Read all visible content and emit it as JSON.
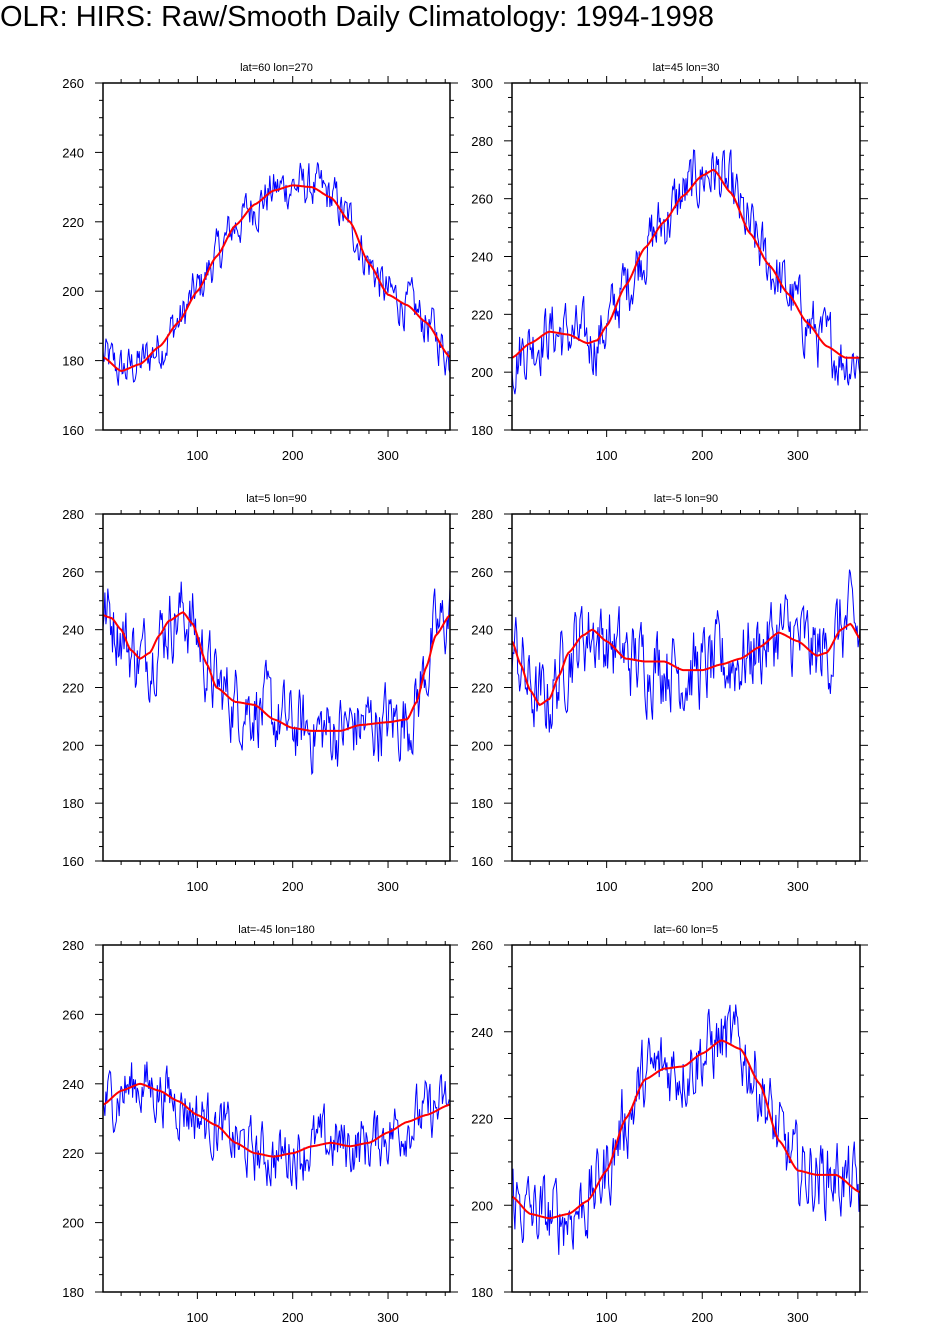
{
  "title": "OLR: HIRS: Raw/Smooth Daily Climatology: 1994-1998",
  "colors": {
    "raw": "#0000ff",
    "smooth": "#ff0000",
    "axes": "#000000"
  },
  "chart_data": [
    {
      "type": "line",
      "title": "lat=60  lon=270",
      "xlim": [
        1,
        365
      ],
      "ylim": [
        160,
        260
      ],
      "xticks": [
        100,
        200,
        300
      ],
      "yticks": [
        160,
        180,
        200,
        220,
        240,
        260
      ],
      "raw_noise_amplitude": 6,
      "series": [
        {
          "name": "smooth",
          "x": [
            1,
            20,
            40,
            60,
            80,
            100,
            120,
            140,
            160,
            180,
            200,
            220,
            240,
            260,
            280,
            300,
            320,
            340,
            365
          ],
          "values": [
            181,
            177,
            179,
            184,
            191,
            200,
            210,
            219,
            225,
            229,
            230.5,
            230,
            227,
            220,
            208,
            199,
            196,
            191,
            181
          ]
        }
      ]
    },
    {
      "type": "line",
      "title": "lat=45  lon=30",
      "xlim": [
        1,
        365
      ],
      "ylim": [
        180,
        300
      ],
      "xticks": [
        100,
        200,
        300
      ],
      "yticks": [
        180,
        200,
        220,
        240,
        260,
        280,
        300
      ],
      "raw_noise_amplitude": 10,
      "series": [
        {
          "name": "smooth",
          "x": [
            1,
            20,
            40,
            60,
            80,
            90,
            100,
            120,
            140,
            160,
            180,
            200,
            212,
            230,
            250,
            270,
            290,
            310,
            330,
            350,
            365
          ],
          "values": [
            205,
            210,
            214,
            213,
            210,
            211,
            216,
            230,
            243,
            252,
            261,
            268,
            270,
            262,
            248,
            237,
            227,
            217,
            209,
            205,
            205
          ]
        }
      ]
    },
    {
      "type": "line",
      "title": "lat=5  lon=90",
      "xlim": [
        1,
        365
      ],
      "ylim": [
        160,
        280
      ],
      "xticks": [
        100,
        200,
        300
      ],
      "yticks": [
        160,
        180,
        200,
        220,
        240,
        260,
        280
      ],
      "raw_noise_amplitude": 12,
      "series": [
        {
          "name": "smooth",
          "x": [
            1,
            10,
            20,
            30,
            40,
            50,
            60,
            70,
            85,
            95,
            110,
            120,
            140,
            160,
            180,
            200,
            220,
            250,
            270,
            300,
            320,
            330,
            340,
            350,
            365
          ],
          "values": [
            245,
            244,
            240,
            233,
            230,
            232,
            238,
            243,
            246,
            242,
            228,
            220,
            215,
            214,
            209,
            206,
            205,
            205,
            207,
            208,
            209,
            215,
            227,
            238,
            245
          ]
        }
      ]
    },
    {
      "type": "line",
      "title": "lat=-5  lon=90",
      "xlim": [
        1,
        365
      ],
      "ylim": [
        160,
        280
      ],
      "xticks": [
        100,
        200,
        300
      ],
      "yticks": [
        160,
        180,
        200,
        220,
        240,
        260,
        280
      ],
      "raw_noise_amplitude": 13,
      "series": [
        {
          "name": "smooth",
          "x": [
            1,
            10,
            20,
            30,
            40,
            50,
            60,
            75,
            85,
            100,
            120,
            140,
            160,
            180,
            200,
            220,
            240,
            260,
            280,
            300,
            320,
            330,
            345,
            355,
            365
          ],
          "values": [
            236,
            228,
            219,
            214,
            216,
            224,
            232,
            238,
            240,
            236,
            230,
            229,
            229,
            226,
            226,
            228,
            230,
            234,
            239,
            236,
            231,
            232,
            240,
            242,
            237
          ]
        }
      ]
    },
    {
      "type": "line",
      "title": "lat=-45  lon=180",
      "xlim": [
        1,
        365
      ],
      "ylim": [
        180,
        280
      ],
      "xticks": [
        100,
        200,
        300
      ],
      "yticks": [
        180,
        200,
        220,
        240,
        260,
        280
      ],
      "raw_noise_amplitude": 8,
      "series": [
        {
          "name": "smooth",
          "x": [
            1,
            20,
            40,
            60,
            80,
            100,
            120,
            140,
            160,
            180,
            200,
            220,
            240,
            260,
            280,
            300,
            320,
            340,
            365
          ],
          "values": [
            234,
            238,
            240,
            238,
            235,
            231,
            228,
            223,
            220,
            219,
            220,
            222,
            223,
            222,
            223,
            226,
            229,
            231,
            234
          ]
        }
      ]
    },
    {
      "type": "line",
      "title": "lat=-60  lon=5",
      "xlim": [
        1,
        365
      ],
      "ylim": [
        180,
        260
      ],
      "xticks": [
        100,
        200,
        300
      ],
      "yticks": [
        180,
        200,
        220,
        240,
        260
      ],
      "raw_noise_amplitude": 8,
      "series": [
        {
          "name": "smooth",
          "x": [
            1,
            20,
            40,
            60,
            80,
            100,
            120,
            140,
            160,
            180,
            200,
            220,
            240,
            260,
            280,
            300,
            320,
            340,
            365
          ],
          "values": [
            202,
            198,
            197,
            198,
            201,
            208,
            220,
            229,
            231.5,
            232,
            235,
            238,
            236,
            228,
            215,
            208,
            207,
            207,
            203
          ]
        }
      ]
    }
  ]
}
